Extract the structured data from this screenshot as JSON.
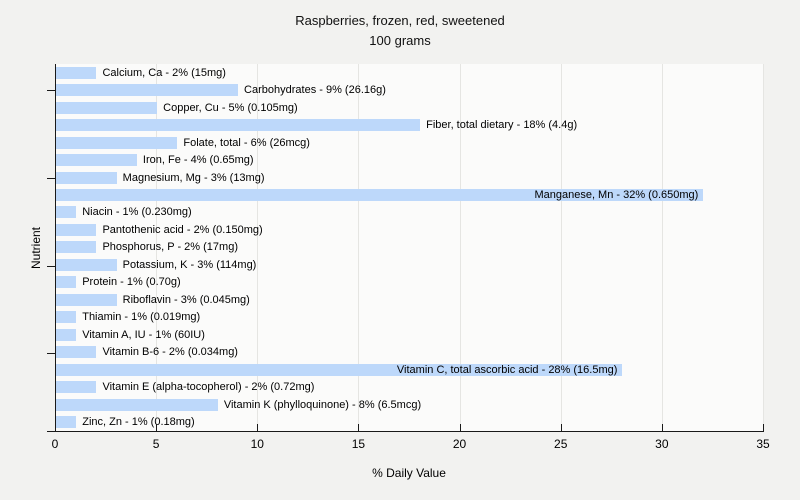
{
  "title": {
    "line1": "Raspberries, frozen, red, sweetened",
    "line2": "100 grams"
  },
  "chart_data": {
    "type": "bar",
    "orientation": "horizontal",
    "title": "Raspberries, frozen, red, sweetened — 100 grams",
    "xlabel": "% Daily Value",
    "ylabel": "Nutrient",
    "xlim": [
      0,
      35
    ],
    "x_ticks": [
      0,
      5,
      10,
      15,
      20,
      25,
      30,
      35
    ],
    "grid": true,
    "legend": false,
    "categories": [
      "Calcium, Ca",
      "Carbohydrates",
      "Copper, Cu",
      "Fiber, total dietary",
      "Folate, total",
      "Iron, Fe",
      "Magnesium, Mg",
      "Manganese, Mn",
      "Niacin",
      "Pantothenic acid",
      "Phosphorus, P",
      "Potassium, K",
      "Protein",
      "Riboflavin",
      "Thiamin",
      "Vitamin A, IU",
      "Vitamin B-6",
      "Vitamin C, total ascorbic acid",
      "Vitamin E (alpha-tocopherol)",
      "Vitamin K (phylloquinone)",
      "Zinc, Zn"
    ],
    "values": [
      2,
      9,
      5,
      18,
      6,
      4,
      3,
      32,
      1,
      2,
      2,
      3,
      1,
      3,
      1,
      1,
      2,
      28,
      2,
      8,
      1
    ],
    "amounts": [
      "15mg",
      "26.16g",
      "0.105mg",
      "4.4g",
      "26mcg",
      "0.65mg",
      "13mg",
      "0.650mg",
      "0.230mg",
      "0.150mg",
      "17mg",
      "114mg",
      "0.70g",
      "0.045mg",
      "0.019mg",
      "60IU",
      "0.034mg",
      "16.5mg",
      "0.72mg",
      "6.5mcg",
      "0.18mg"
    ],
    "bar_labels": [
      "Calcium, Ca - 2% (15mg)",
      "Carbohydrates - 9% (26.16g)",
      "Copper, Cu - 5% (0.105mg)",
      "Fiber, total dietary - 18% (4.4g)",
      "Folate, total - 6% (26mcg)",
      "Iron, Fe - 4% (0.65mg)",
      "Magnesium, Mg - 3% (13mg)",
      "Manganese, Mn - 32% (0.650mg)",
      "Niacin - 1% (0.230mg)",
      "Pantothenic acid - 2% (0.150mg)",
      "Phosphorus, P - 2% (17mg)",
      "Potassium, K - 3% (114mg)",
      "Protein - 1% (0.70g)",
      "Riboflavin - 3% (0.045mg)",
      "Thiamin - 1% (0.019mg)",
      "Vitamin A, IU - 1% (60IU)",
      "Vitamin B-6 - 2% (0.034mg)",
      "Vitamin C, total ascorbic acid - 28% (16.5mg)",
      "Vitamin E (alpha-tocopherol) - 2% (0.72mg)",
      "Vitamin K (phylloquinone) - 8% (6.5mcg)",
      "Zinc, Zn - 1% (0.18mg)"
    ],
    "y_tick_rows": [
      1,
      6,
      11,
      16
    ]
  },
  "colors": {
    "page_background": "#f2f2f0",
    "plot_background": "#fbfbfa",
    "bar_fill": "#bdd8fa",
    "gridline": "#e5e5e2",
    "axis": "#1a1a1a",
    "text": "#000000"
  }
}
